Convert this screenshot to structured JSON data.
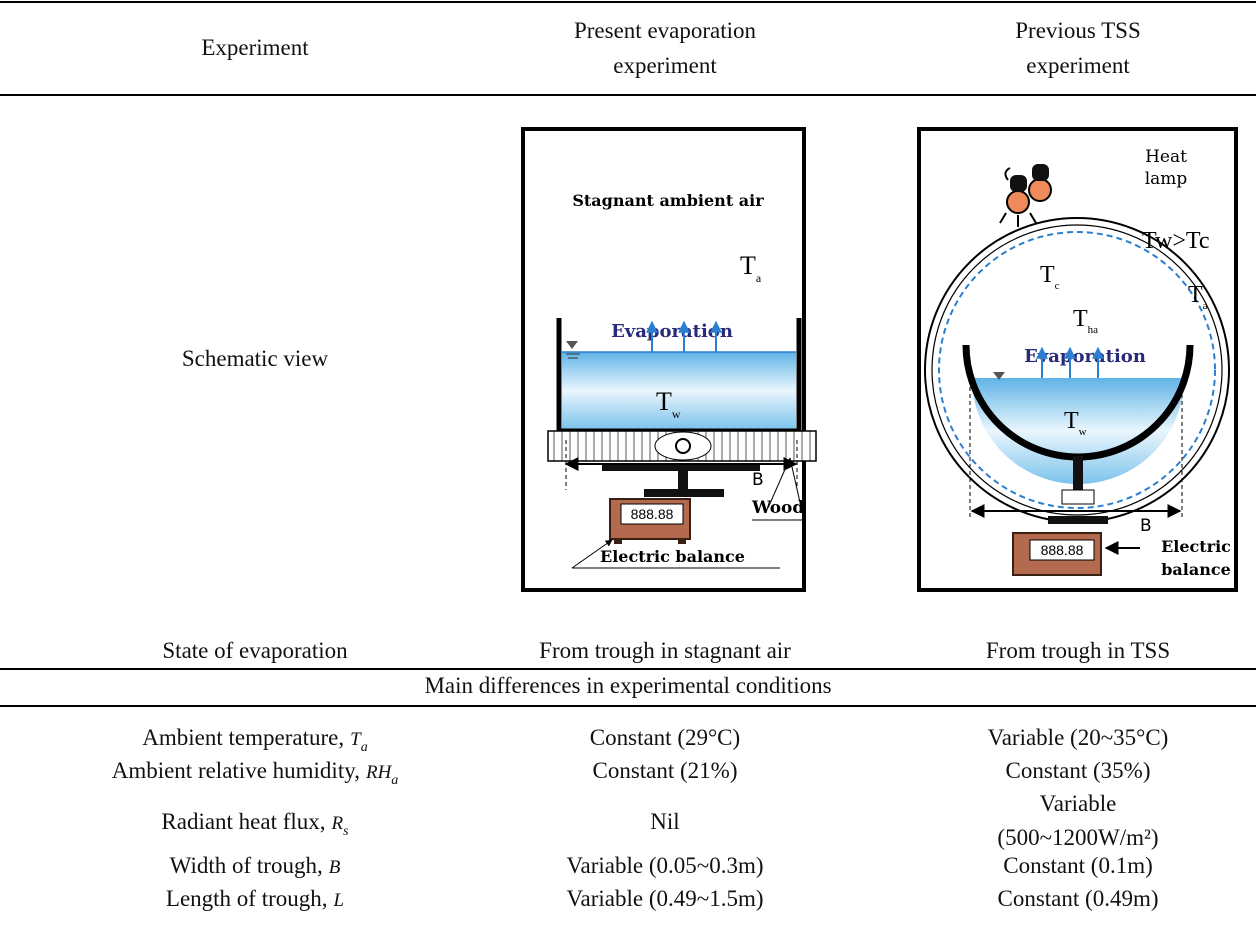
{
  "header": {
    "col1": "Experiment",
    "col2": [
      "Present evaporation",
      "experiment"
    ],
    "col3": [
      "Previous TSS",
      "experiment"
    ]
  },
  "schematic": {
    "label": "Schematic view",
    "present": {
      "ambient": "Stagnant ambient air",
      "ta": {
        "symbol": "T",
        "sub": "a"
      },
      "evaporation": "Evaporation",
      "tw": {
        "symbol": "T",
        "sub": "w"
      },
      "b": "B",
      "wood": "Wood",
      "display": "888.88",
      "balance": "Electric balance"
    },
    "previous": {
      "lamp": [
        "Heat",
        "lamp"
      ],
      "relation": "Tw>Tc",
      "tc": {
        "symbol": "T",
        "sub": "c"
      },
      "ta": {
        "symbol": "T",
        "sub": "a"
      },
      "tha": {
        "symbol": "T",
        "sub": "ha"
      },
      "evaporation": "Evaporation",
      "tw": {
        "symbol": "T",
        "sub": "w"
      },
      "b": "B",
      "display": "888.88",
      "balance": [
        "Electric",
        "balance"
      ]
    }
  },
  "state": {
    "label": "State of evaporation",
    "present": "From trough in stagnant air",
    "previous": "From trough in TSS"
  },
  "section": "Main differences in experimental conditions",
  "rows": [
    {
      "label": "Ambient temperature,",
      "symbol": "T",
      "subscript": "a",
      "present": "Constant (29°C)",
      "previous": [
        "Variable (20~35°C)"
      ]
    },
    {
      "label": "Ambient relative humidity,",
      "symbol": "RH",
      "subscript": "a",
      "present": "Constant (21%)",
      "previous": [
        "Constant (35%)"
      ]
    },
    {
      "label": "Radiant heat flux,",
      "symbol": "R",
      "subscript": "s",
      "present": "Nil",
      "previous": [
        "Variable",
        "(500~1200W/m²)"
      ]
    },
    {
      "label": "Width of trough,",
      "symbol": "B",
      "subscript": null,
      "present": "Variable (0.05~0.3m)",
      "previous": [
        "Constant (0.1m)"
      ]
    },
    {
      "label": "Length of trough,",
      "symbol": "L",
      "subscript": null,
      "present": "Variable (0.49~1.5m)",
      "previous": [
        "Constant (0.49m)"
      ]
    }
  ]
}
